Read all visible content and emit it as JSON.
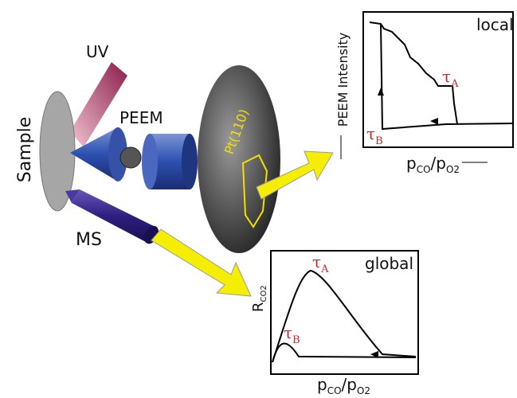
{
  "setup": {
    "uv": "UV",
    "sample": "Sample",
    "peem": "PEEM",
    "surface": "Pt(110)",
    "ms": "MS"
  },
  "local_plot": {
    "label": "local",
    "y_label": "PEEM Intensity",
    "tau_a": {
      "symbol": "τ",
      "sub": "A"
    },
    "tau_b": {
      "symbol": "τ",
      "sub": "B"
    },
    "x_label": {
      "p1": "p",
      "s1": "CO",
      "p2": "/p",
      "s2": "O2"
    }
  },
  "global_plot": {
    "label": "global",
    "y_label": {
      "main": "R",
      "sub": "CO2"
    },
    "tau_a": {
      "symbol": "τ",
      "sub": "A"
    },
    "tau_b": {
      "symbol": "τ",
      "sub": "B"
    },
    "x_label": {
      "p1": "p",
      "s1": "CO",
      "p2": "/p",
      "s2": "O2"
    }
  }
}
